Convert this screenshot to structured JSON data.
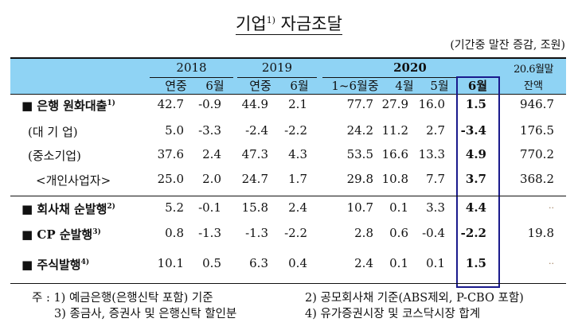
{
  "title": {
    "text": "기업",
    "sup": "1)",
    "text2": "자금조달"
  },
  "unit": "(기간중 말잔 증감, 조원)",
  "header": {
    "years": [
      "2018",
      "2019",
      "2020"
    ],
    "subcols": [
      "연중",
      "6월",
      "연중",
      "6월",
      "1~6월중",
      "4월",
      "5월",
      "6월"
    ],
    "last_col": [
      "20.6월말",
      "잔액"
    ]
  },
  "rows": [
    {
      "label": "■ 은행 원화대출",
      "sup": "1)",
      "bold": true,
      "values": [
        "42.7",
        "-0.9",
        "44.9",
        "2.1",
        "77.7",
        "27.9",
        "16.0",
        "1.5",
        "946.7"
      ]
    },
    {
      "label": "(대 기 업)",
      "sup": "",
      "bold": false,
      "values": [
        "5.0",
        "-3.3",
        "-2.4",
        "-2.2",
        "24.2",
        "11.2",
        "2.7",
        "-3.4",
        "176.5"
      ]
    },
    {
      "label": "(중소기업)",
      "sup": "",
      "bold": false,
      "values": [
        "37.6",
        "2.4",
        "47.3",
        "4.3",
        "53.5",
        "16.6",
        "13.3",
        "4.9",
        "770.2"
      ]
    },
    {
      "label": "<개인사업자>",
      "sup": "",
      "bold": false,
      "values": [
        "25.0",
        "2.0",
        "24.7",
        "1.7",
        "29.8",
        "10.8",
        "7.7",
        "3.7",
        "368.2"
      ]
    },
    {
      "label": "■ 회사채 순발행",
      "sup": "2)",
      "bold": true,
      "values": [
        "5.2",
        "-0.1",
        "15.8",
        "2.4",
        "10.7",
        "0.1",
        "3.3",
        "4.4",
        ".."
      ]
    },
    {
      "label": "■ CP 순발행",
      "sup": "3)",
      "bold": true,
      "values": [
        "0.8",
        "-1.3",
        "-1.3",
        "-2.2",
        "2.8",
        "0.6",
        "-0.4",
        "-2.2",
        "19.8"
      ]
    },
    {
      "label": "■ 주식발행",
      "sup": "4)",
      "bold": true,
      "values": [
        "10.1",
        "0.5",
        "6.3",
        "0.4",
        "2.4",
        "0.1",
        "0.1",
        "1.5",
        ".."
      ]
    }
  ],
  "notes": {
    "prefix": "주 :",
    "n1": "1) 예금은행(은행신탁 포함) 기준",
    "n2": "2) 공모회사채 기준(ABS제외, P-CBO 포함)",
    "n3": "3) 종금사, 증권사 및 은행신탁 할인분",
    "n4": "4) 유가증권시장 및 코스닥시장 합계"
  },
  "colors": {
    "header_bg": "#8fd3f4",
    "highlight_box": "#1a1a8c"
  }
}
